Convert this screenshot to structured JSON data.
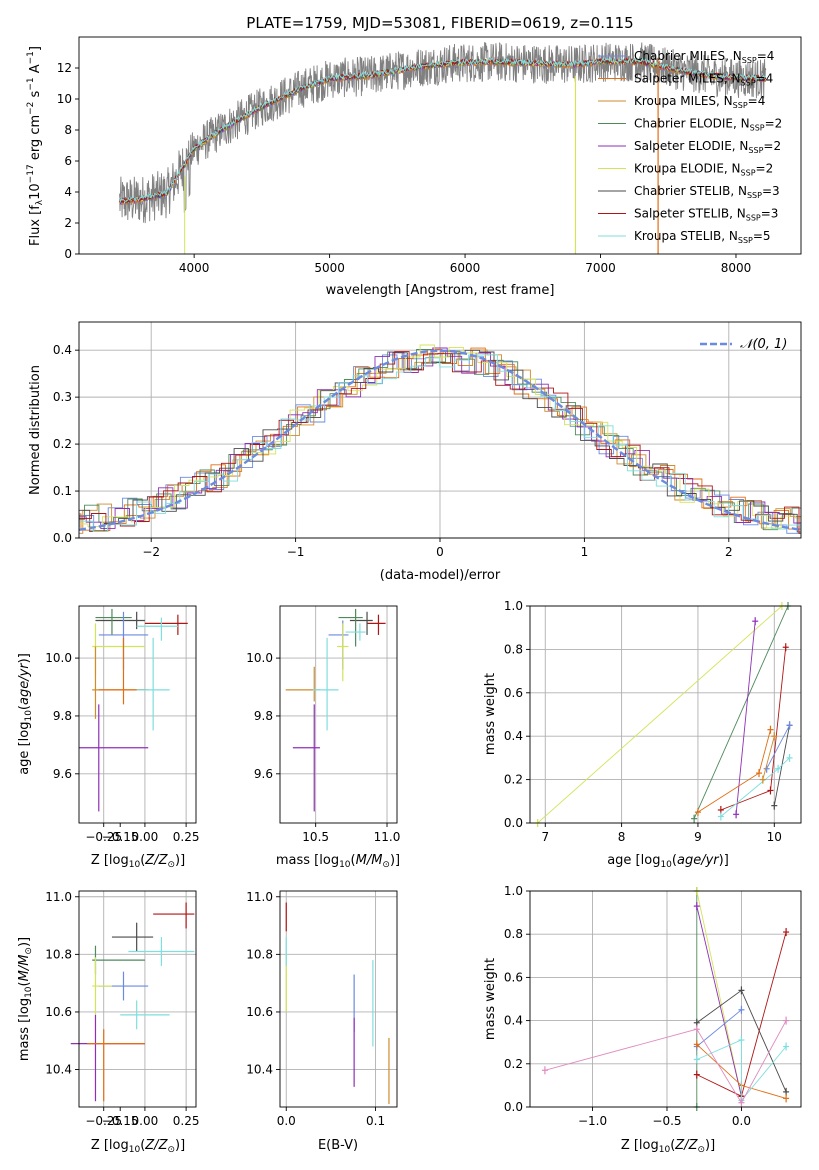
{
  "chart_data": [
    {
      "type": "line",
      "panel": "spectrum",
      "title": "PLATE=1759, MJD=53081, FIBERID=0619, z=0.115",
      "xlabel": "wavelength [Angstrom, rest frame]",
      "ylabel": "Flux [f_λ10^-17 erg cm^-2 s^-1 A^-1]",
      "xlim": [
        3150,
        8480
      ],
      "ylim": [
        0,
        14
      ],
      "xticks": [
        4000,
        5000,
        6000,
        7000,
        8000
      ],
      "yticks": [
        0,
        2,
        4,
        6,
        8,
        10,
        12
      ],
      "grid": false,
      "legend_position": "top-right",
      "legend": [
        "Chabrier MILES, N_SSP=4",
        "Salpeter MILES, N_SSP=4",
        "Kroupa MILES, N_SSP=4",
        "Chabrier ELODIE, N_SSP=2",
        "Salpeter ELODIE, N_SSP=2",
        "Kroupa ELODIE, N_SSP=2",
        "Chabrier STELIB, N_SSP=3",
        "Salpeter STELIB, N_SSP=3",
        "Kroupa STELIB, N_SSP=5"
      ],
      "data_color": "#808080",
      "model_colors": [
        "#6b8be0",
        "#e26d12",
        "#d08b2c",
        "#4e8a5b",
        "#8f2fb8",
        "#d4e35a",
        "#4a4a4a",
        "#b01515",
        "#7fdede"
      ],
      "continuum": {
        "x": [
          3450,
          3600,
          3800,
          4000,
          4200,
          4500,
          4800,
          5000,
          5300,
          5600,
          5900,
          6200,
          6500,
          6800,
          7000,
          7300,
          7600,
          7900,
          8220
        ],
        "y": [
          3.4,
          3.5,
          3.9,
          6.8,
          8.0,
          9.5,
          10.7,
          11.3,
          11.5,
          12.0,
          12.3,
          12.4,
          12.3,
          12.2,
          12.4,
          12.4,
          11.8,
          11.4,
          11.3
        ]
      }
    },
    {
      "type": "step",
      "panel": "residual-histogram",
      "xlabel": "(data-model)/error",
      "ylabel": "Normed distribution",
      "xlim": [
        -2.5,
        2.5
      ],
      "ylim": [
        0,
        0.46
      ],
      "xticks": [
        -2,
        -1,
        0,
        1,
        2
      ],
      "yticks": [
        0.0,
        0.1,
        0.2,
        0.3,
        0.4
      ],
      "grid": true,
      "legend_position": "top-right",
      "legend": [
        "𝒩(0, 1)"
      ],
      "curve_color": "#6b8be0",
      "bin_width": 0.1
    },
    {
      "type": "scatter",
      "panel": "age-vs-metallicity",
      "xlabel": "Z [log₁₀(Z/Z⊙)]",
      "ylabel": "age  [log₁₀(age/yr)]",
      "xlim": [
        -0.4,
        0.31
      ],
      "ylim": [
        9.43,
        10.18
      ],
      "xticks": [
        -0.25,
        -0.15,
        0.0,
        0.25
      ],
      "xtick_labels": [
        "−0.25",
        "−0.15",
        "0.00",
        "0.25"
      ],
      "xticks_minor_label": [
        {
          "value": -0.25,
          "label": "−0.25"
        }
      ],
      "yticks": [
        9.6,
        9.8,
        10.0
      ],
      "yticks_labels": [
        "9.6",
        "9.8",
        "10.0"
      ],
      "grid": true
    },
    {
      "type": "scatter",
      "panel": "age-vs-mass",
      "xlabel": "mass [log₁₀(M/M⊙)]",
      "ylabel": "",
      "xlim": [
        10.25,
        11.07
      ],
      "ylim": [
        9.43,
        10.18
      ],
      "xticks": [
        10.5,
        11.0
      ],
      "xtick_labels": [
        "10.5",
        "11.0"
      ],
      "yticks": [
        9.6,
        9.8,
        10.0
      ],
      "yticks_labels": [
        "9.6",
        "9.8",
        "10.0"
      ],
      "grid": true
    },
    {
      "type": "line",
      "panel": "mass-weight-vs-age",
      "xlabel": "age  [log₁₀(age/yr)]",
      "ylabel": "mass weight",
      "xlim": [
        6.8,
        10.35
      ],
      "ylim": [
        0,
        1
      ],
      "xticks": [
        7,
        8,
        9,
        10
      ],
      "xtick_labels": [
        "7",
        "8",
        "9",
        "10"
      ],
      "yticks": [
        0,
        0.2,
        0.4,
        0.6,
        0.8,
        1.0
      ],
      "yticks_labels": [
        "0.0",
        "0.2",
        "0.4",
        "0.6",
        "0.8",
        "1.0"
      ],
      "grid": true
    },
    {
      "type": "scatter",
      "panel": "mass-vs-metallicity",
      "xlabel": "Z [log₁₀(Z/Z⊙)]",
      "ylabel": "mass [log₁₀(M/M⊙)]",
      "xlim": [
        -0.4,
        0.31
      ],
      "ylim": [
        10.27,
        11.02
      ],
      "xticks": [
        -0.25,
        0.0,
        0.25
      ],
      "xtick_labels": [
        "−0.25",
        "0.00",
        "0.25"
      ],
      "xticks_inner": [
        {
          "value": -0.15,
          "label": "−0.15"
        }
      ],
      "yticks": [
        10.4,
        10.6,
        10.8,
        11.0
      ],
      "yticks_labels": [
        "10.4",
        "10.6",
        "10.8",
        "11.0"
      ],
      "grid": true
    },
    {
      "type": "scatter",
      "panel": "mass-vs-extinction",
      "xlabel": "E(B-V)",
      "ylabel": "",
      "xlim": [
        -0.007,
        0.124
      ],
      "ylim": [
        10.27,
        11.02
      ],
      "xticks": [
        0.0,
        0.1
      ],
      "xtick_labels": [
        "0.0",
        "0.1"
      ],
      "yticks": [
        10.4,
        10.6,
        10.8,
        11.0
      ],
      "yticks_labels": [
        "10.4",
        "10.6",
        "10.8",
        "11.0"
      ],
      "grid": true
    },
    {
      "type": "line",
      "panel": "mass-weight-vs-metallicity",
      "xlabel": "Z [log₁₀(Z/Z⊙)]",
      "ylabel": "mass weight",
      "xlim": [
        -1.42,
        0.4
      ],
      "ylim": [
        0,
        1
      ],
      "xticks": [
        -1.0,
        -0.5,
        0.0
      ],
      "xtick_labels": [
        "−1.0",
        "−0.5",
        "0.0"
      ],
      "yticks": [
        0,
        0.2,
        0.4,
        0.6,
        0.8,
        1.0
      ],
      "yticks_labels": [
        "0.0",
        "0.2",
        "0.4",
        "0.6",
        "0.8",
        "1.0"
      ],
      "grid": true
    }
  ]
}
